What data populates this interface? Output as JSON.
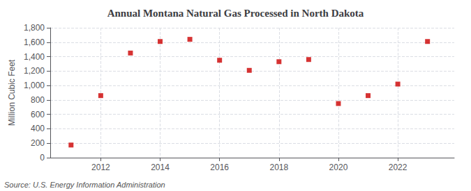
{
  "chart_data": {
    "type": "scatter",
    "title": "Annual Montana Natural Gas Processed in North Dakota",
    "ylabel": "Million Cubic Feet",
    "source": "Source: U.S. Energy Information Administration",
    "x": [
      2011,
      2012,
      2013,
      2014,
      2015,
      2016,
      2017,
      2018,
      2019,
      2020,
      2021,
      2022,
      2023
    ],
    "values": [
      175,
      860,
      1450,
      1610,
      1640,
      1350,
      1210,
      1330,
      1360,
      750,
      860,
      1020,
      1610
    ],
    "color": "#cc0000",
    "marker": "square",
    "xlim": [
      2010.3,
      2023.9
    ],
    "xticks": [
      2012,
      2014,
      2016,
      2018,
      2020,
      2022
    ],
    "ylim": [
      0,
      1800
    ],
    "yticks": [
      0,
      200,
      400,
      600,
      800,
      {
        "value": 1000,
        "label": "1,000"
      },
      {
        "value": 1200,
        "label": "1,200"
      },
      {
        "value": 1400,
        "label": "1,400"
      },
      {
        "value": 1600,
        "label": "1,600"
      },
      {
        "value": 1800,
        "label": "1,800"
      }
    ],
    "grid": true
  }
}
